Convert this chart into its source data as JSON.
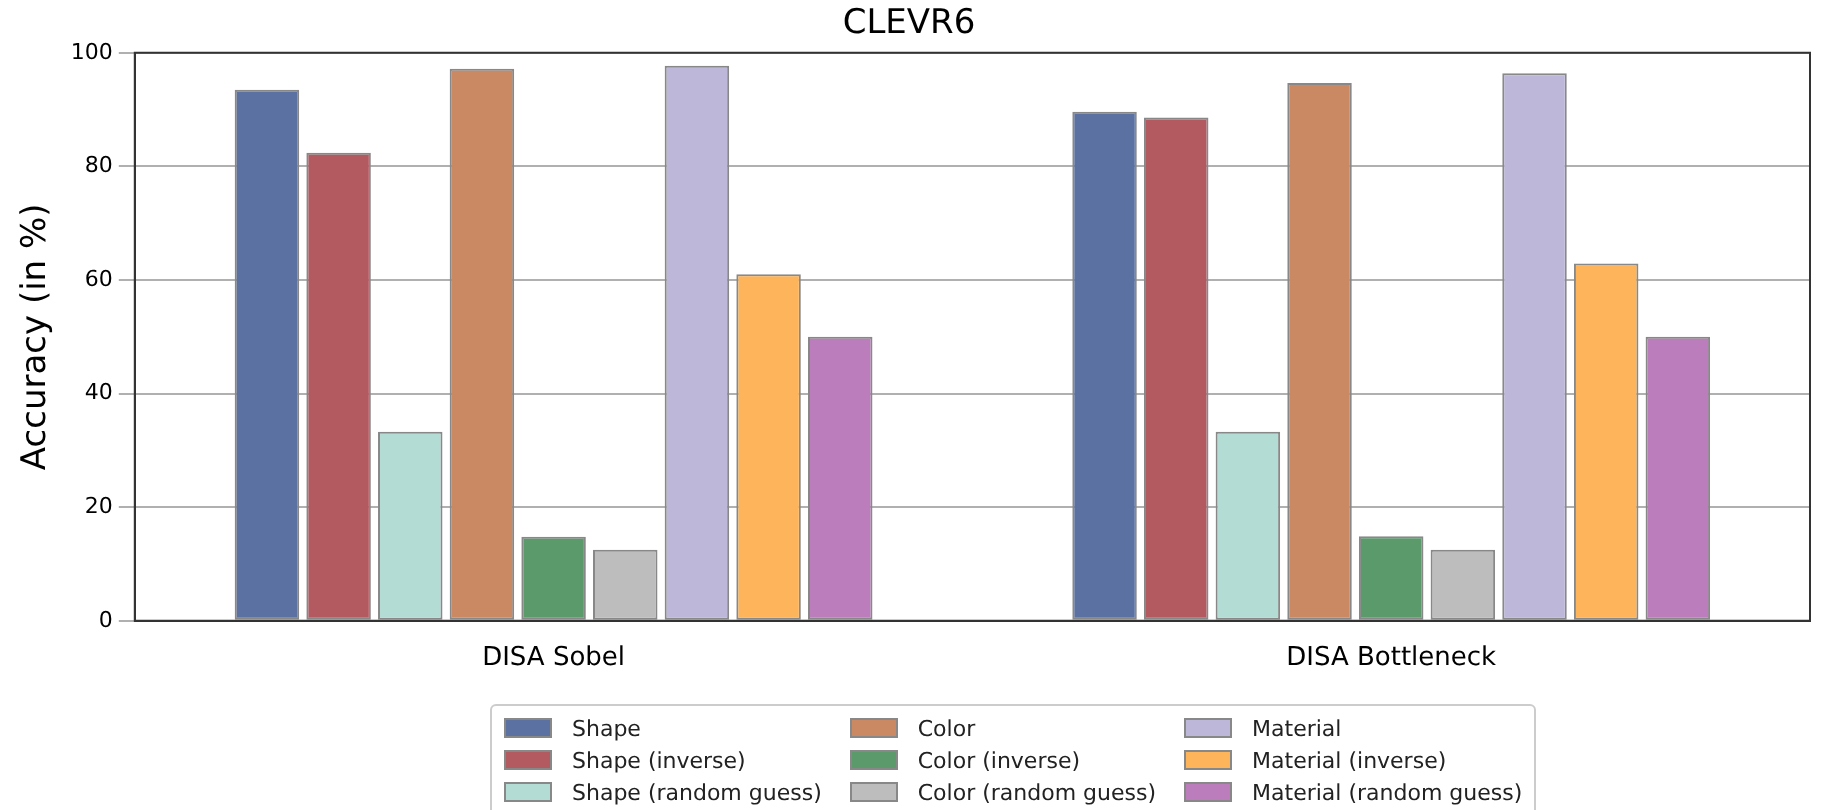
{
  "chart_data": {
    "type": "bar",
    "title": "CLEVR6",
    "ylabel": "Accuracy (in %)",
    "categories": [
      "DISA Sobel",
      "DISA Bottleneck"
    ],
    "series": [
      {
        "name": "Shape",
        "color": "#5a71a2",
        "values": [
          93.5,
          89.6
        ]
      },
      {
        "name": "Shape (inverse)",
        "color": "#b35a61",
        "values": [
          82.4,
          88.6
        ]
      },
      {
        "name": "Shape (random guess)",
        "color": "#b3dcd5",
        "values": [
          33.3,
          33.3
        ]
      },
      {
        "name": "Color",
        "color": "#cb8963",
        "values": [
          97.2,
          94.7
        ]
      },
      {
        "name": "Color (inverse)",
        "color": "#5a9a6b",
        "values": [
          14.8,
          14.9
        ]
      },
      {
        "name": "Color (random guess)",
        "color": "#bdbdbd",
        "values": [
          12.5,
          12.5
        ]
      },
      {
        "name": "Material",
        "color": "#bdb7d9",
        "values": [
          97.7,
          96.4
        ]
      },
      {
        "name": "Material (inverse)",
        "color": "#fdb45a",
        "values": [
          61.0,
          62.9
        ]
      },
      {
        "name": "Material (random guess)",
        "color": "#bb7dbb",
        "values": [
          50.0,
          50.0
        ]
      }
    ],
    "ylim": [
      0,
      100
    ],
    "yticks": [
      0,
      20,
      40,
      60,
      80,
      100
    ],
    "grid": "y",
    "legend": "bottom"
  }
}
